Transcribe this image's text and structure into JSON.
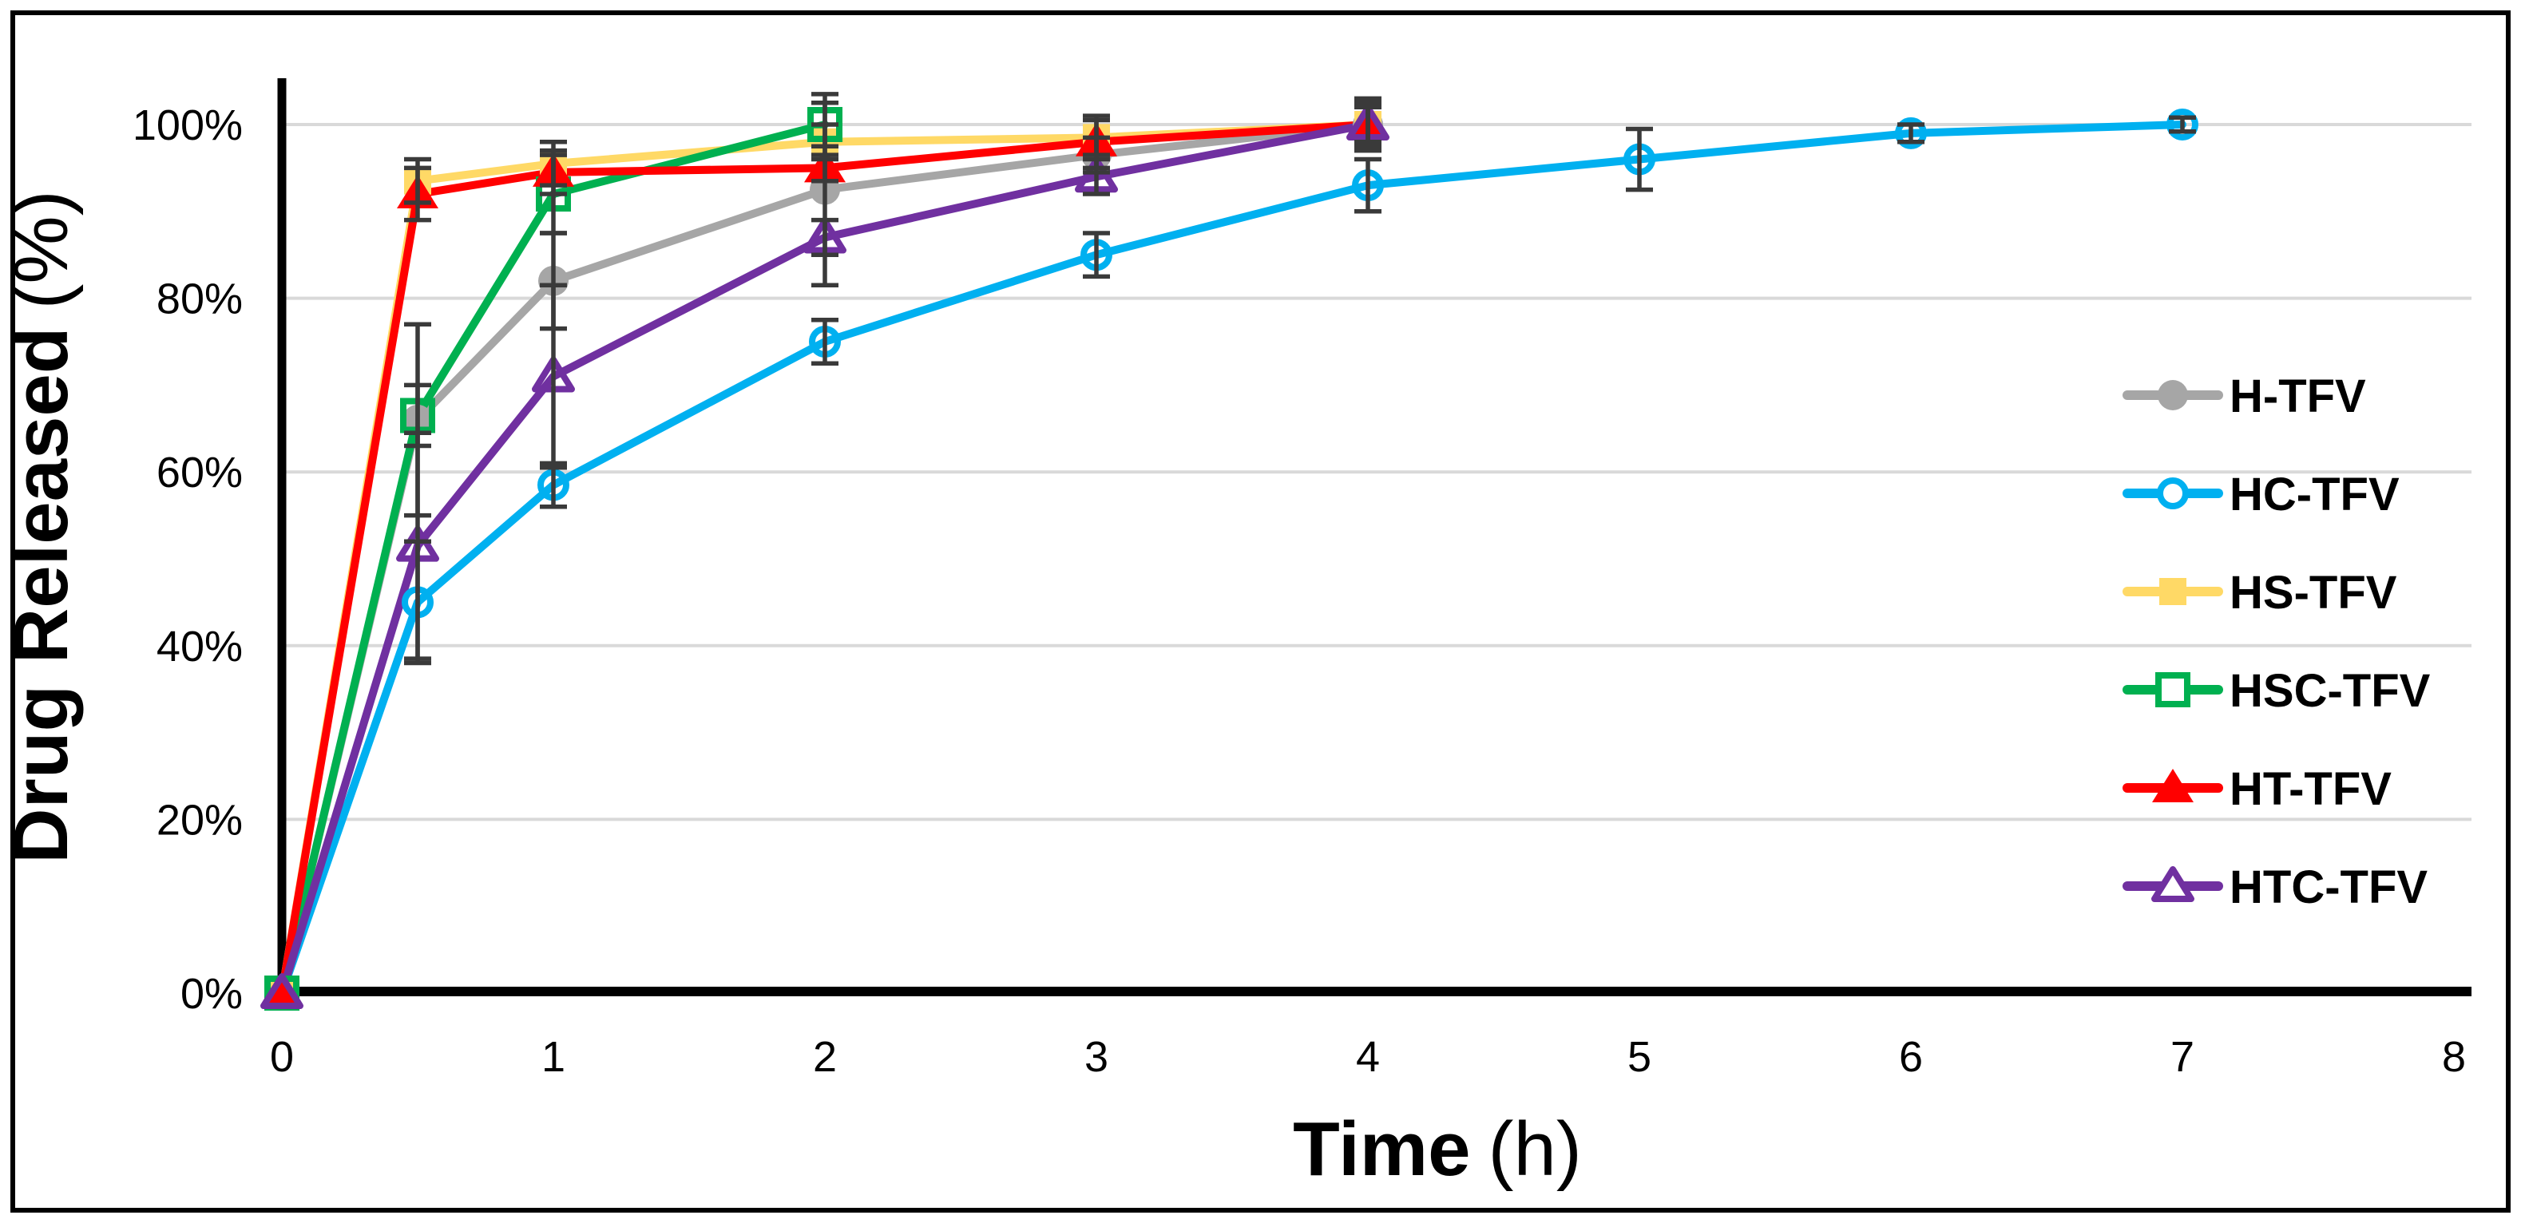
{
  "figure": {
    "y_axis_title": "Drug Released",
    "y_axis_unit": "(%)",
    "x_axis_title": "Time",
    "x_axis_unit": "(h)"
  },
  "chart_data": {
    "type": "line",
    "title": "",
    "xlabel": "Time (h)",
    "ylabel": "Drug Released (%)",
    "xlim": [
      0,
      8
    ],
    "ylim": [
      0,
      100
    ],
    "x_ticks": [
      0,
      1,
      2,
      3,
      4,
      5,
      6,
      7,
      8
    ],
    "x_tick_labels": [
      "0",
      "1",
      "2",
      "3",
      "4",
      "5",
      "6",
      "7",
      "8"
    ],
    "y_ticks": [
      0,
      20,
      40,
      60,
      80,
      100
    ],
    "y_tick_labels": [
      "0%",
      "20%",
      "40%",
      "60%",
      "80%",
      "100%"
    ],
    "grid": "horizontal",
    "legend_position": "right",
    "error_bars": true,
    "colors": {
      "grid": "#D9D9D9",
      "axis": "#000000",
      "error_bar": "#3A3A3A",
      "frame": "#000000",
      "background": "#FFFFFF"
    },
    "series": [
      {
        "name": "H-TFV",
        "color": "#A6A6A6",
        "marker": "circle-filled",
        "x": [
          0,
          0.5,
          1,
          2,
          3,
          4
        ],
        "y": [
          0,
          66,
          82,
          92.5,
          96.5,
          100
        ],
        "err": [
          0,
          11,
          5.5,
          11,
          2,
          2.5
        ]
      },
      {
        "name": "HC-TFV",
        "color": "#00B0F0",
        "marker": "circle-open",
        "x": [
          0,
          0.5,
          1,
          2,
          3,
          4,
          5,
          6,
          7
        ],
        "y": [
          0,
          45,
          58.5,
          75,
          85,
          93,
          96,
          99,
          100
        ],
        "err": [
          0,
          7,
          2.5,
          2.5,
          2.5,
          3,
          3.5,
          1,
          0.8
        ]
      },
      {
        "name": "HS-TFV",
        "color": "#FFD966",
        "marker": "square-filled",
        "x": [
          0,
          0.5,
          1,
          2,
          3,
          4
        ],
        "y": [
          0,
          93.5,
          95.5,
          98,
          98.5,
          100
        ],
        "err": [
          0,
          2.5,
          2.5,
          2,
          2,
          3
        ]
      },
      {
        "name": "HSC-TFV",
        "color": "#00B050",
        "marker": "square-open",
        "x": [
          0,
          0.5,
          1,
          2
        ],
        "y": [
          0,
          66.5,
          92,
          100
        ],
        "err": [
          0,
          3.5,
          4.5,
          2.5
        ]
      },
      {
        "name": "HT-TFV",
        "color": "#FF0000",
        "marker": "triangle-filled",
        "x": [
          0,
          0.5,
          1,
          2,
          3,
          4
        ],
        "y": [
          0,
          92,
          94.5,
          95,
          98,
          100
        ],
        "err": [
          0,
          3,
          2.5,
          1.5,
          3,
          2
        ]
      },
      {
        "name": "HTC-TFV",
        "color": "#7030A0",
        "marker": "triangle-open",
        "x": [
          0,
          0.5,
          1,
          2,
          3,
          4
        ],
        "y": [
          0,
          51.5,
          71,
          87,
          94,
          100
        ],
        "err": [
          0,
          13,
          10.5,
          2,
          2,
          2.5
        ]
      }
    ]
  }
}
